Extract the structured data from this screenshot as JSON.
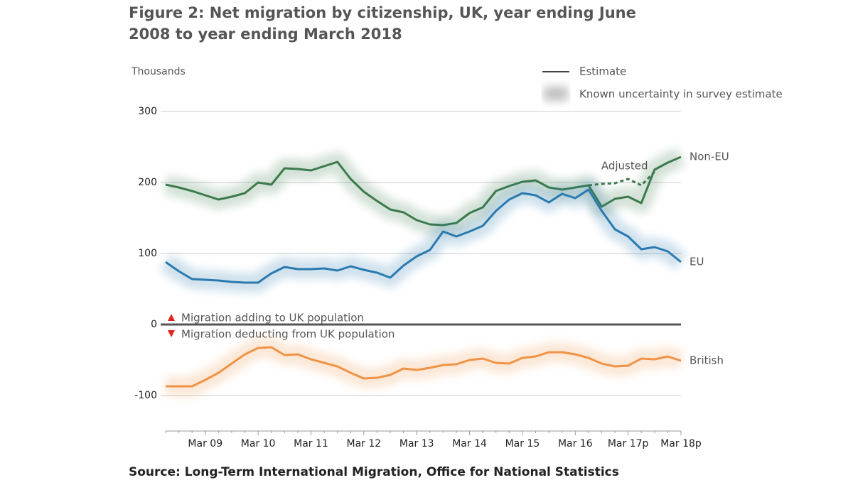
{
  "chart_data": {
    "type": "line",
    "title_lines": [
      "Figure 2: Net migration by citizenship, UK, year ending June",
      "2008 to year ending March 2018"
    ],
    "y_label": "Thousands",
    "source": "Source: Long-Term International Migration, Office for National Statistics",
    "legend": [
      "Estimate",
      "Known uncertainty in survey estimate"
    ],
    "annotations": [
      "Migration adding to UK population",
      "Migration deducting from UK population"
    ],
    "categories": [
      null,
      null,
      null,
      "Mar 09",
      null,
      null,
      null,
      "Mar 10",
      null,
      null,
      null,
      "Mar 11",
      null,
      null,
      null,
      "Mar 12",
      null,
      null,
      null,
      "Mar 13",
      null,
      null,
      null,
      "Mar 14",
      null,
      null,
      null,
      "Mar 15",
      null,
      null,
      null,
      "Mar 16",
      null,
      null,
      null,
      "Mar 17p",
      null,
      null,
      null,
      "Mar 18p"
    ],
    "series": [
      {
        "name": "Non-EU",
        "color": "#3b7a4c",
        "values": [
          197,
          193,
          188,
          182,
          176,
          180,
          185,
          200,
          197,
          220,
          219,
          217,
          223,
          229,
          205,
          187,
          174,
          162,
          158,
          147,
          141,
          140,
          143,
          157,
          165,
          188,
          195,
          201,
          203,
          193,
          190,
          193,
          196,
          166,
          177,
          180,
          171,
          218,
          228,
          236
        ]
      },
      {
        "name": "Adjusted",
        "color": "#3b7a4c",
        "dashed": true,
        "values": [
          null,
          null,
          null,
          null,
          null,
          null,
          null,
          null,
          null,
          null,
          null,
          null,
          null,
          null,
          null,
          null,
          null,
          null,
          null,
          null,
          null,
          null,
          null,
          null,
          null,
          null,
          null,
          null,
          null,
          null,
          null,
          null,
          196,
          198,
          199,
          205,
          196,
          215,
          null,
          null
        ]
      },
      {
        "name": "EU",
        "color": "#2a7aaf",
        "values": [
          88,
          75,
          64,
          63,
          62,
          60,
          59,
          59,
          72,
          81,
          78,
          78,
          79,
          76,
          82,
          77,
          73,
          66,
          83,
          96,
          105,
          131,
          124,
          131,
          139,
          160,
          176,
          185,
          182,
          172,
          184,
          178,
          190,
          160,
          134,
          124,
          106,
          109,
          103,
          88
        ]
      },
      {
        "name": "British",
        "color": "#ef9446",
        "values": [
          -87,
          -87,
          -87,
          -78,
          -68,
          -55,
          -42,
          -33,
          -32,
          -43,
          -42,
          -49,
          -54,
          -59,
          -68,
          -76,
          -75,
          -71,
          -62,
          -64,
          -61,
          -57,
          -56,
          -50,
          -48,
          -54,
          -55,
          -47,
          -45,
          -39,
          -39,
          -42,
          -47,
          -55,
          -59,
          -58,
          -48,
          -49,
          -45,
          -51
        ]
      }
    ],
    "ylim": [
      -150,
      300
    ],
    "yticks": [
      -100,
      0,
      100,
      200,
      300
    ],
    "grid": true
  }
}
